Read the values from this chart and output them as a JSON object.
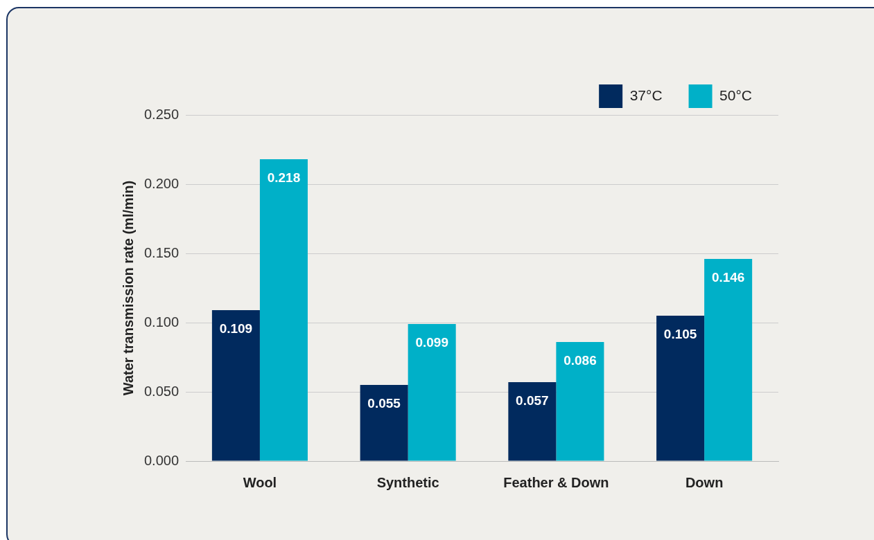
{
  "chart_data": {
    "type": "bar",
    "ylabel": "Water transmission rate (ml/min)",
    "categories": [
      "Wool",
      "Synthetic",
      "Feather & Down",
      "Down"
    ],
    "series": [
      {
        "name": "37°C",
        "color": "#012a5e",
        "values": [
          0.109,
          0.055,
          0.057,
          0.105
        ]
      },
      {
        "name": "50°C",
        "color": "#00b0c8",
        "values": [
          0.218,
          0.099,
          0.086,
          0.146
        ]
      }
    ],
    "ylim": [
      0,
      0.25
    ],
    "yticks": [
      "0.000",
      "0.050",
      "0.100",
      "0.150",
      "0.200",
      "0.250"
    ],
    "grid": "y",
    "legend": "top right",
    "data_labels": true
  }
}
